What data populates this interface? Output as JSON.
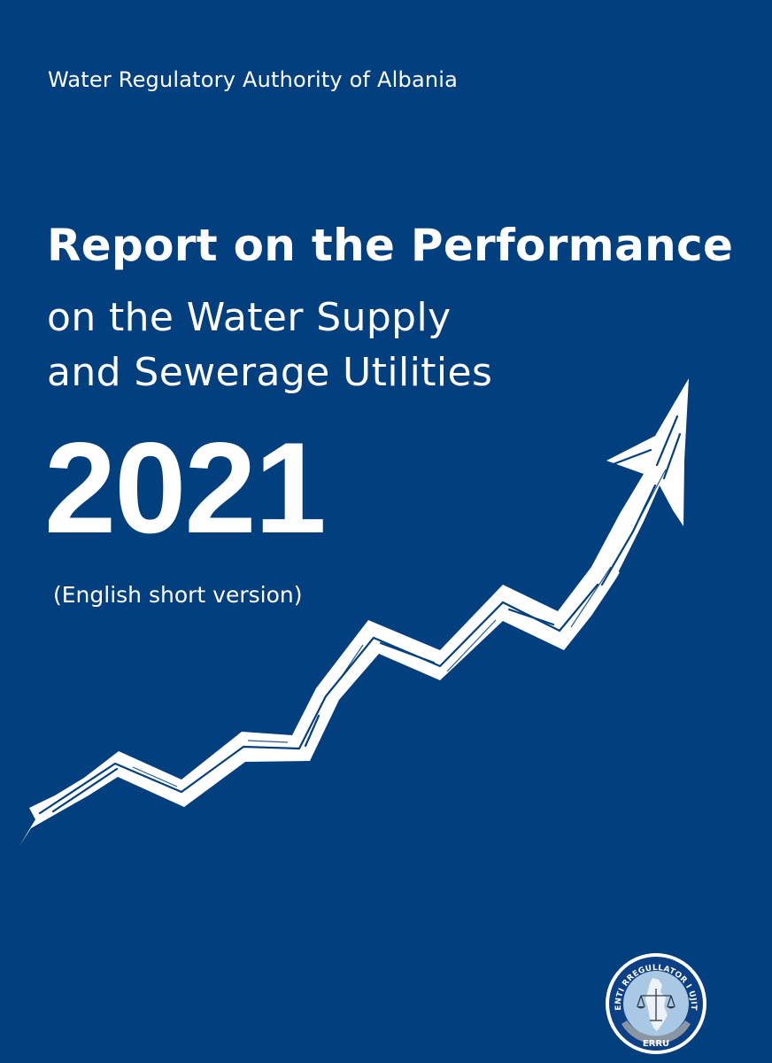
{
  "header": {
    "organization": "Water Regulatory Authority of Albania"
  },
  "title": {
    "main": "Report on the Performance",
    "line1": "on the Water Supply",
    "line2": "and Sewerage Utilities"
  },
  "year": "2021",
  "version_note": "(English short version)",
  "seal": {
    "ring_text": "ENTI RREGULLATOR I UJIT",
    "abbreviation": "ERRU"
  },
  "colors": {
    "background": "#023f7f",
    "foreground": "#ffffff",
    "seal_ring": "#0b3f86",
    "seal_inner": "#a9c8e3"
  },
  "icons": {
    "arrow": "upward-trend-arrow-icon",
    "seal": "scales-of-justice-icon"
  }
}
